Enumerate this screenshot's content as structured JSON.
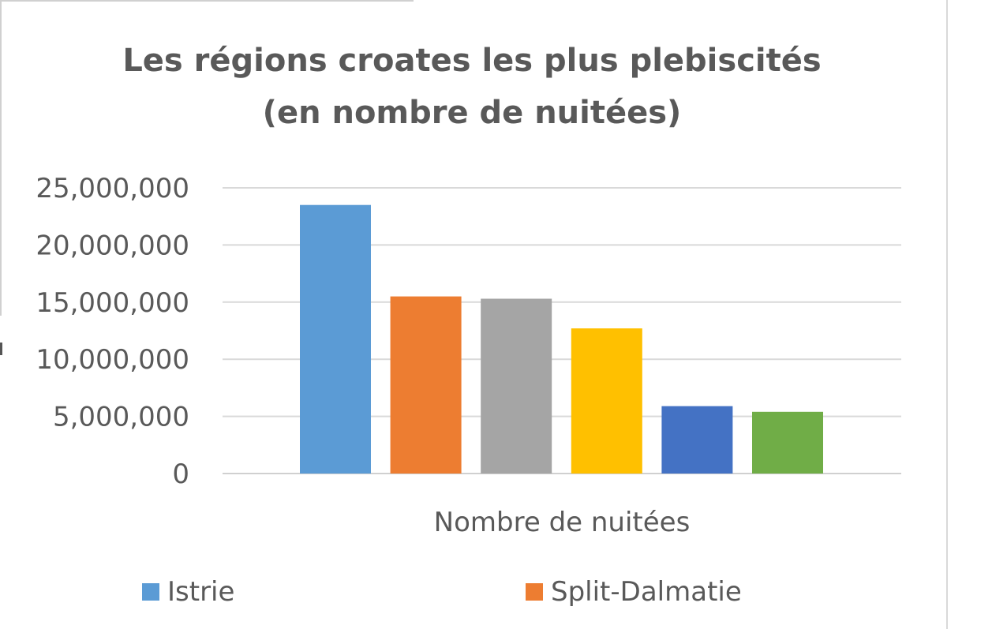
{
  "chart_data": {
    "type": "bar",
    "title": [
      "Les régions croates les plus plebiscités",
      "(en nombre de nuitées)"
    ],
    "xlabel": "Nombre de nuitées",
    "ylabel": "",
    "ylim": [
      0,
      25000000
    ],
    "yticks": [
      {
        "value": 0,
        "label": "0"
      },
      {
        "value": 5000000,
        "label": "5,000,000"
      },
      {
        "value": 10000000,
        "label": "10,000,000"
      },
      {
        "value": 15000000,
        "label": "15,000,000"
      },
      {
        "value": 20000000,
        "label": "20,000,000"
      },
      {
        "value": 25000000,
        "label": "25,000,000"
      }
    ],
    "grid": true,
    "legend_position": "bottom",
    "series": [
      {
        "name": "Istrie",
        "value": 23500000,
        "color": "#5b9bd5"
      },
      {
        "name": "Split-Dalmatie",
        "value": 15500000,
        "color": "#ed7d31"
      },
      {
        "value": 15300000,
        "color": "#a5a5a5"
      },
      {
        "value": 12700000,
        "color": "#ffc000"
      },
      {
        "value": 5900000,
        "color": "#4472c4"
      },
      {
        "value": 5400000,
        "color": "#70ad47"
      }
    ]
  }
}
